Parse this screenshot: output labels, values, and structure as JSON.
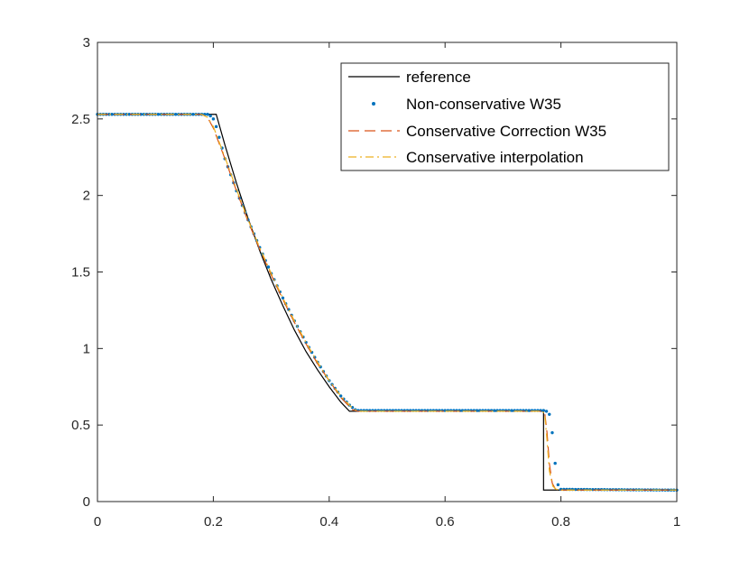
{
  "chart_data": {
    "type": "line",
    "title": "",
    "xlabel": "",
    "ylabel": "",
    "xlim": [
      0,
      1
    ],
    "ylim": [
      0,
      3
    ],
    "xticks": [
      0,
      0.2,
      0.4,
      0.6,
      0.8,
      1
    ],
    "xtick_labels": [
      "0",
      "0.2",
      "0.4",
      "0.6",
      "0.8",
      "1"
    ],
    "yticks": [
      0,
      0.5,
      1,
      1.5,
      2,
      2.5,
      3
    ],
    "ytick_labels": [
      "0",
      "0.5",
      "1",
      "1.5",
      "2",
      "2.5",
      "3"
    ],
    "grid": false,
    "legend_position": "top-right",
    "series": [
      {
        "name": "reference",
        "style": "solid",
        "color": "#000000",
        "x": [
          0,
          0.205,
          0.22,
          0.24,
          0.26,
          0.28,
          0.3,
          0.32,
          0.34,
          0.36,
          0.38,
          0.4,
          0.42,
          0.435,
          0.77,
          0.77,
          1.0
        ],
        "y": [
          2.53,
          2.53,
          2.33,
          2.08,
          1.85,
          1.64,
          1.45,
          1.28,
          1.12,
          0.98,
          0.86,
          0.75,
          0.65,
          0.59,
          0.59,
          0.075,
          0.075
        ]
      },
      {
        "name": "Non-conservative W35",
        "style": "dots",
        "color": "#0072bd",
        "x": [
          0,
          0.19,
          0.195,
          0.2,
          0.205,
          0.21,
          0.215,
          0.22,
          0.24,
          0.26,
          0.28,
          0.3,
          0.32,
          0.34,
          0.36,
          0.38,
          0.4,
          0.42,
          0.435,
          0.445,
          0.45,
          0.77,
          0.775,
          0.78,
          0.785,
          0.79,
          0.795,
          0.8,
          1.0
        ],
        "y": [
          2.53,
          2.53,
          2.52,
          2.5,
          2.45,
          2.38,
          2.31,
          2.24,
          2.03,
          1.84,
          1.66,
          1.49,
          1.33,
          1.18,
          1.04,
          0.91,
          0.79,
          0.69,
          0.63,
          0.6,
          0.595,
          0.595,
          0.59,
          0.57,
          0.45,
          0.25,
          0.11,
          0.08,
          0.075
        ]
      },
      {
        "name": "Conservative Correction W35",
        "style": "dashed",
        "color": "#d95319",
        "x": [
          0,
          0.18,
          0.19,
          0.2,
          0.21,
          0.22,
          0.24,
          0.26,
          0.28,
          0.3,
          0.32,
          0.34,
          0.36,
          0.38,
          0.4,
          0.42,
          0.44,
          0.45,
          0.768,
          0.772,
          0.776,
          0.78,
          0.785,
          0.79,
          0.8,
          1.0
        ],
        "y": [
          2.53,
          2.53,
          2.51,
          2.44,
          2.34,
          2.24,
          2.03,
          1.83,
          1.65,
          1.48,
          1.32,
          1.17,
          1.03,
          0.9,
          0.79,
          0.68,
          0.6,
          0.59,
          0.59,
          0.58,
          0.45,
          0.25,
          0.12,
          0.085,
          0.075,
          0.075
        ]
      },
      {
        "name": "Conservative interpolation",
        "style": "dashdot",
        "color": "#edb120",
        "x": [
          0,
          0.18,
          0.19,
          0.2,
          0.21,
          0.22,
          0.24,
          0.26,
          0.28,
          0.3,
          0.32,
          0.34,
          0.36,
          0.38,
          0.4,
          0.42,
          0.44,
          0.45,
          0.768,
          0.772,
          0.776,
          0.78,
          0.786,
          0.792,
          0.8,
          1.0
        ],
        "y": [
          2.53,
          2.53,
          2.51,
          2.45,
          2.35,
          2.25,
          2.04,
          1.84,
          1.66,
          1.49,
          1.33,
          1.18,
          1.04,
          0.91,
          0.79,
          0.69,
          0.61,
          0.59,
          0.59,
          0.57,
          0.4,
          0.2,
          0.1,
          0.08,
          0.075,
          0.075
        ]
      }
    ]
  }
}
